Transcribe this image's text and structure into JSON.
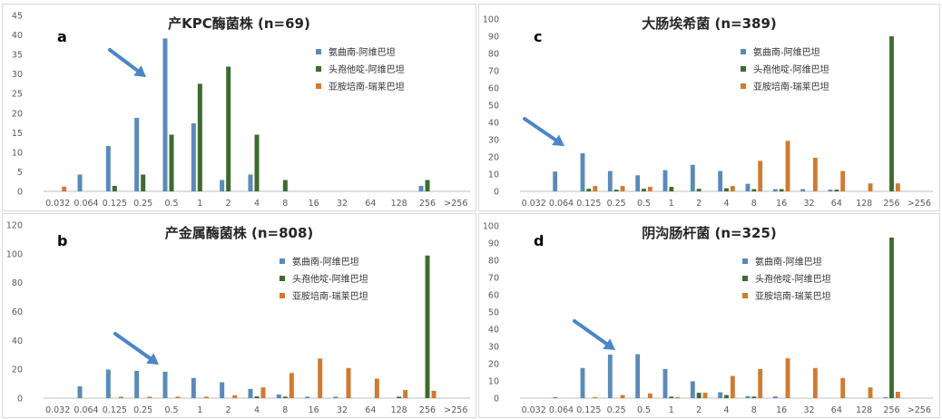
{
  "series_names": [
    "氨曲南-阿维巴坦",
    "头孢他啶-阿维巴坦",
    "亚胺培南-瑞莱巴坦"
  ],
  "colors": {
    "s0": "#5b8ab9",
    "s1": "#3e6b2f",
    "s2": "#d07a32",
    "arrow": "#4a86c6",
    "grid": "#d9d9d9",
    "axis": "#bfbfbf"
  },
  "chart_data": [
    {
      "id": "a",
      "letter": "a",
      "title": "产KPC酶菌株 (n=69)",
      "type": "bar",
      "categories": [
        "0.032",
        "0.064",
        "0.125",
        "0.25",
        "0.5",
        "1",
        "2",
        "4",
        "8",
        "16",
        "32",
        "64",
        "128",
        "256",
        ">256"
      ],
      "yticks": [
        "0",
        "5",
        "10",
        "15",
        "20",
        "25",
        "30",
        "35",
        "40",
        "45"
      ],
      "ylim": [
        0,
        45
      ],
      "series": [
        {
          "name": "氨曲南-阿维巴坦",
          "values": [
            0,
            4.3,
            11.6,
            18.8,
            39.1,
            17.4,
            2.9,
            4.3,
            0,
            0,
            0,
            0,
            0,
            1.4,
            0
          ]
        },
        {
          "name": "头孢他啶-阿维巴坦",
          "values": [
            0,
            0,
            1.4,
            4.3,
            14.5,
            27.5,
            31.9,
            14.5,
            2.9,
            0,
            0,
            0,
            0,
            2.9,
            0
          ]
        },
        {
          "name": "亚胺培南-瑞莱巴坦",
          "values": [
            1.2,
            0,
            0,
            0,
            0,
            0,
            0,
            0,
            0,
            0,
            0,
            0,
            0,
            0,
            0
          ]
        }
      ]
    },
    {
      "id": "c",
      "letter": "c",
      "title": "大肠埃希菌 (n=389)",
      "type": "bar",
      "categories": [
        "0.032",
        "0.064",
        "0.125",
        "0.25",
        "0.5",
        "1",
        "2",
        "4",
        "8",
        "16",
        "32",
        "64",
        "128",
        "256",
        ">256"
      ],
      "yticks": [
        "0",
        "10",
        "20",
        "30",
        "40",
        "50",
        "60",
        "70",
        "80",
        "90",
        "100"
      ],
      "ylim": [
        0,
        100
      ],
      "series": [
        {
          "name": "氨曲南-阿维巴坦",
          "values": [
            0,
            11.5,
            22.1,
            11.8,
            9.3,
            12.3,
            15.4,
            11.8,
            4.4,
            1.3,
            1.3,
            1.0,
            0,
            0,
            0
          ]
        },
        {
          "name": "头孢他啶-阿维巴坦",
          "values": [
            0,
            0,
            1.5,
            1.0,
            1.5,
            2.6,
            1.5,
            1.8,
            1.3,
            1.3,
            0,
            1.0,
            0,
            90,
            0
          ]
        },
        {
          "name": "亚胺培南-瑞莱巴坦",
          "values": [
            0,
            0,
            3.1,
            3.1,
            2.6,
            0,
            0,
            3.1,
            17.7,
            29.3,
            19.5,
            11.8,
            4.6,
            4.6,
            0
          ]
        }
      ]
    },
    {
      "id": "b",
      "letter": "b",
      "title": "产金属酶菌株 (n=808)",
      "type": "bar",
      "categories": [
        "0.032",
        "0.064",
        "0.125",
        "0.25",
        "0.5",
        "1",
        "2",
        "4",
        "8",
        "16",
        "32",
        "64",
        "128",
        "256",
        ">256"
      ],
      "yticks": [
        "0",
        "20",
        "40",
        "60",
        "80",
        "100",
        "120"
      ],
      "ylim": [
        0,
        120
      ],
      "series": [
        {
          "name": "氨曲南-阿维巴坦",
          "values": [
            0,
            8.2,
            19.8,
            18.9,
            18.3,
            14.0,
            11.0,
            6.4,
            2.5,
            1.0,
            1.0,
            0,
            0,
            0,
            0
          ]
        },
        {
          "name": "头孢他啶-阿维巴坦",
          "values": [
            0,
            0,
            0,
            0,
            0,
            0,
            0,
            1.2,
            1.0,
            0,
            0,
            0,
            1.0,
            98.8,
            0
          ]
        },
        {
          "name": "亚胺培南-瑞莱巴坦",
          "values": [
            0,
            0,
            1.0,
            1.0,
            1.0,
            1.0,
            2.0,
            7.4,
            17.4,
            27.4,
            20.9,
            13.5,
            5.6,
            5.1,
            0
          ]
        }
      ]
    },
    {
      "id": "d",
      "letter": "d",
      "title": "阴沟肠杆菌 (n=325)",
      "type": "bar",
      "categories": [
        "0.032",
        "0.064",
        "0.125",
        "0.25",
        "0.5",
        "1",
        "2",
        "4",
        "8",
        "16",
        "32",
        "64",
        "128",
        "256",
        ">256"
      ],
      "yticks": [
        "0",
        "10",
        "20",
        "30",
        "40",
        "50",
        "60",
        "70",
        "80",
        "90",
        "100"
      ],
      "ylim": [
        0,
        100
      ],
      "series": [
        {
          "name": "氨曲南-阿维巴坦",
          "values": [
            0,
            0.6,
            17.5,
            25.2,
            25.5,
            16.9,
            9.8,
            3.4,
            1.2,
            1.0,
            0,
            0,
            0,
            0.6,
            0
          ]
        },
        {
          "name": "头孢他啶-阿维巴坦",
          "values": [
            0,
            0,
            0,
            0,
            0,
            0.9,
            3.1,
            1.8,
            0.9,
            0,
            0,
            0,
            0,
            93.2,
            0
          ]
        },
        {
          "name": "亚胺培南-瑞莱巴坦",
          "values": [
            0,
            0,
            0.6,
            1.8,
            2.8,
            0.6,
            3.1,
            12.9,
            16.9,
            23.1,
            17.5,
            11.7,
            6.2,
            3.7,
            0
          ]
        }
      ]
    }
  ]
}
